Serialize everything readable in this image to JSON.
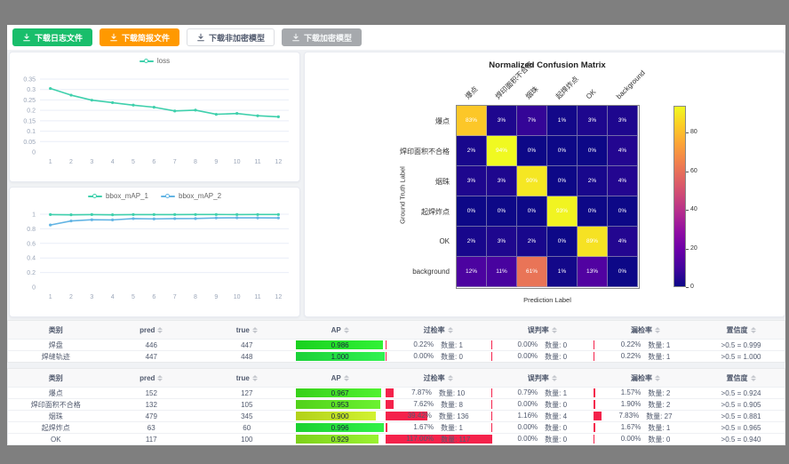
{
  "page": {
    "frame_color": "#7f7f7f",
    "content_bg": "#f0f2f5"
  },
  "toolbar": {
    "buttons": [
      {
        "label": "下载日志文件",
        "bg": "#19be6b",
        "fg": "#ffffff",
        "border": "#19be6b"
      },
      {
        "label": "下载简报文件",
        "bg": "#ff9900",
        "fg": "#ffffff",
        "border": "#ff9900"
      },
      {
        "label": "下载非加密模型",
        "bg": "#ffffff",
        "fg": "#515a6e",
        "border": "#dcdee2"
      },
      {
        "label": "下载加密模型",
        "bg": "#a6a9ad",
        "fg": "#f7f9fa",
        "border": "#a6a9ad"
      }
    ]
  },
  "chart_data": [
    {
      "type": "line",
      "id": "loss",
      "x": [
        1,
        2,
        3,
        4,
        5,
        6,
        7,
        8,
        9,
        10,
        11,
        12
      ],
      "ylim": [
        0,
        0.35
      ],
      "yticks": [
        0,
        0.05,
        0.1,
        0.15,
        0.2,
        0.25,
        0.3,
        0.35
      ],
      "grid": true,
      "legend_position": "top",
      "series": [
        {
          "name": "loss",
          "color": "#3fd0ac",
          "values": [
            0.305,
            0.273,
            0.249,
            0.237,
            0.225,
            0.215,
            0.197,
            0.201,
            0.181,
            0.185,
            0.174,
            0.169
          ]
        }
      ]
    },
    {
      "type": "line",
      "id": "bbox_mAP",
      "x": [
        1,
        2,
        3,
        4,
        5,
        6,
        7,
        8,
        9,
        10,
        11,
        12
      ],
      "ylim": [
        0,
        1
      ],
      "yticks": [
        0,
        0.2,
        0.4,
        0.6,
        0.8,
        1
      ],
      "grid": true,
      "legend_position": "top",
      "series": [
        {
          "name": "bbox_mAP_1",
          "color": "#3fd0ac",
          "values": [
            0.995,
            0.992,
            0.995,
            0.992,
            0.995,
            0.995,
            0.995,
            0.996,
            0.996,
            0.995,
            0.996,
            0.996
          ]
        },
        {
          "name": "bbox_mAP_2",
          "color": "#62b4e4",
          "values": [
            0.852,
            0.908,
            0.924,
            0.922,
            0.94,
            0.936,
            0.94,
            0.941,
            0.949,
            0.951,
            0.95,
            0.949
          ]
        }
      ]
    },
    {
      "type": "heatmap",
      "title": "Normalized Confusion Matrix",
      "xlabel": "Prediction Label",
      "ylabel": "Ground Truth Label",
      "labels": [
        "爆点",
        "焊印面积不合格",
        "烟珠",
        "起焊炸点",
        "OK",
        "background"
      ],
      "values": [
        [
          83,
          3,
          7,
          1,
          3,
          3
        ],
        [
          2,
          94,
          0,
          0,
          0,
          4
        ],
        [
          3,
          3,
          90,
          0,
          2,
          4
        ],
        [
          0,
          0,
          0,
          93,
          0,
          0
        ],
        [
          2,
          3,
          2,
          0,
          89,
          4
        ],
        [
          12,
          11,
          61,
          1,
          13,
          0
        ]
      ],
      "value_suffix": "%",
      "vmin": 0,
      "vmax": 94,
      "colorbar_ticks": [
        0,
        20,
        40,
        60,
        80
      ],
      "colormap": "plasma",
      "colormap_stops": [
        "#0d0887",
        "#41049d",
        "#6a00a8",
        "#8f0da4",
        "#b12a90",
        "#cc4778",
        "#e16462",
        "#f2844b",
        "#fca636",
        "#fcce25",
        "#f0f921"
      ]
    }
  ],
  "count_label": "数量:",
  "tables": [
    {
      "headers": [
        {
          "key": "class",
          "label": "类别",
          "sortable": false
        },
        {
          "key": "pred",
          "label": "pred",
          "sortable": true
        },
        {
          "key": "true",
          "label": "true",
          "sortable": true
        },
        {
          "key": "ap",
          "label": "AP",
          "sortable": true
        },
        {
          "key": "over-rate",
          "label": "过检率",
          "sortable": true
        },
        {
          "key": "misjudge-rate",
          "label": "误判率",
          "sortable": true
        },
        {
          "key": "miss-rate",
          "label": "漏检率",
          "sortable": true
        },
        {
          "key": "confidence",
          "label": "置信度",
          "sortable": true
        }
      ],
      "rows": [
        {
          "name": "焊盘",
          "pred": "446",
          "true": "447",
          "ap": "0.986",
          "over_pct": "0.22%",
          "over_n": "1",
          "mis_pct": "0.00%",
          "mis_n": "0",
          "miss_pct": "0.22%",
          "miss_n": "1",
          "conf": ">0.5 = 0.999"
        },
        {
          "name": "焊缝轨迹",
          "pred": "447",
          "true": "448",
          "ap": "1.000",
          "over_pct": "0.00%",
          "over_n": "0",
          "mis_pct": "0.00%",
          "mis_n": "0",
          "miss_pct": "0.22%",
          "miss_n": "1",
          "conf": ">0.5 = 1.000"
        }
      ]
    },
    {
      "headers": [
        {
          "key": "class",
          "label": "类别",
          "sortable": false
        },
        {
          "key": "pred",
          "label": "pred",
          "sortable": true
        },
        {
          "key": "true",
          "label": "true",
          "sortable": true
        },
        {
          "key": "ap",
          "label": "AP",
          "sortable": true
        },
        {
          "key": "over-rate",
          "label": "过检率",
          "sortable": true
        },
        {
          "key": "misjudge-rate",
          "label": "误判率",
          "sortable": true
        },
        {
          "key": "miss-rate",
          "label": "漏检率",
          "sortable": true
        },
        {
          "key": "confidence",
          "label": "置信度",
          "sortable": true
        }
      ],
      "rows": [
        {
          "name": "爆点",
          "pred": "152",
          "true": "127",
          "ap": "0.967",
          "over_pct": "7.87%",
          "over_n": "10",
          "mis_pct": "0.79%",
          "mis_n": "1",
          "miss_pct": "1.57%",
          "miss_n": "2",
          "conf": ">0.5 = 0.924"
        },
        {
          "name": "焊印面积不合格",
          "pred": "132",
          "true": "105",
          "ap": "0.953",
          "over_pct": "7.62%",
          "over_n": "8",
          "mis_pct": "0.00%",
          "mis_n": "0",
          "miss_pct": "1.90%",
          "miss_n": "2",
          "conf": ">0.5 = 0.905"
        },
        {
          "name": "烟珠",
          "pred": "479",
          "true": "345",
          "ap": "0.900",
          "over_pct": "39.42%",
          "over_n": "136",
          "mis_pct": "1.16%",
          "mis_n": "4",
          "miss_pct": "7.83%",
          "miss_n": "27",
          "conf": ">0.5 = 0.881"
        },
        {
          "name": "起焊炸点",
          "pred": "63",
          "true": "60",
          "ap": "0.996",
          "over_pct": "1.67%",
          "over_n": "1",
          "mis_pct": "0.00%",
          "mis_n": "0",
          "miss_pct": "1.67%",
          "miss_n": "1",
          "conf": ">0.5 = 0.965"
        },
        {
          "name": "OK",
          "pred": "117",
          "true": "100",
          "ap": "0.929",
          "over_pct": "117.00%",
          "over_n": "117",
          "mis_pct": "0.00%",
          "mis_n": "0",
          "miss_pct": "0.00%",
          "miss_n": "0",
          "conf": ">0.5 = 0.940"
        }
      ]
    }
  ],
  "colors": {
    "success_button": "#19be6b",
    "warning_button": "#ff9900",
    "teal_series": "#3fd0ac",
    "blue_series": "#62b4e4",
    "rate_bar_red": "#f4224b",
    "table_header_bg": "#f8f8f9"
  }
}
